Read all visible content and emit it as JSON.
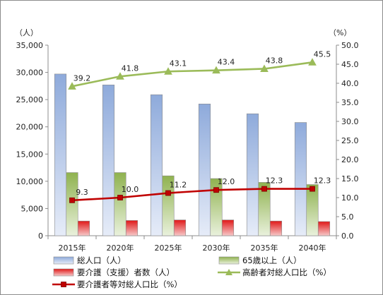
{
  "chart_data": {
    "type": "bar",
    "categories": [
      "2015年",
      "2020年",
      "2025年",
      "2030年",
      "2035年",
      "2040年"
    ],
    "left_axis": {
      "unit": "（人）",
      "ylim": [
        0,
        35000
      ],
      "ticks": [
        "0",
        "5,000",
        "10,000",
        "15,000",
        "20,000",
        "25,000",
        "30,000",
        "35,000"
      ]
    },
    "right_axis": {
      "unit": "（%）",
      "ylim": [
        0,
        50
      ],
      "ticks": [
        "0.0",
        "5.0",
        "10.0",
        "15.0",
        "20.0",
        "25.0",
        "30.0",
        "35.0",
        "40.0",
        "45.0",
        "50.0"
      ]
    },
    "grid": false,
    "legend_position": "bottom",
    "series": [
      {
        "name": "総人口（人）",
        "kind": "bar",
        "axis": "left",
        "color": "#8eaadb",
        "values": [
          29700,
          27700,
          25900,
          24200,
          22400,
          20800
        ]
      },
      {
        "name": "65歳以上（人）",
        "kind": "bar",
        "axis": "left",
        "color": "#9bbb59",
        "values": [
          11600,
          11600,
          11000,
          10500,
          9800,
          9400
        ]
      },
      {
        "name": "要介護（支援）者数（人）",
        "kind": "bar",
        "axis": "left",
        "color": "#e03030",
        "values": [
          2700,
          2800,
          2900,
          2900,
          2700,
          2600
        ]
      },
      {
        "name": "高齢者対総人口比（%）",
        "kind": "line",
        "axis": "right",
        "color": "#9bbb59",
        "marker": "triangle",
        "values": [
          39.2,
          41.8,
          43.1,
          43.4,
          43.8,
          45.5
        ],
        "labels": [
          "39.2",
          "41.8",
          "43.1",
          "43.4",
          "43.8",
          "45.5"
        ]
      },
      {
        "name": "要介護者等対総人口比（%）",
        "kind": "line",
        "axis": "right",
        "color": "#c00000",
        "marker": "square",
        "values": [
          9.3,
          10.0,
          11.2,
          12.0,
          12.3,
          12.3
        ],
        "labels": [
          "9.3",
          "10.0",
          "11.2",
          "12.0",
          "12.3",
          "12.3"
        ]
      }
    ]
  }
}
